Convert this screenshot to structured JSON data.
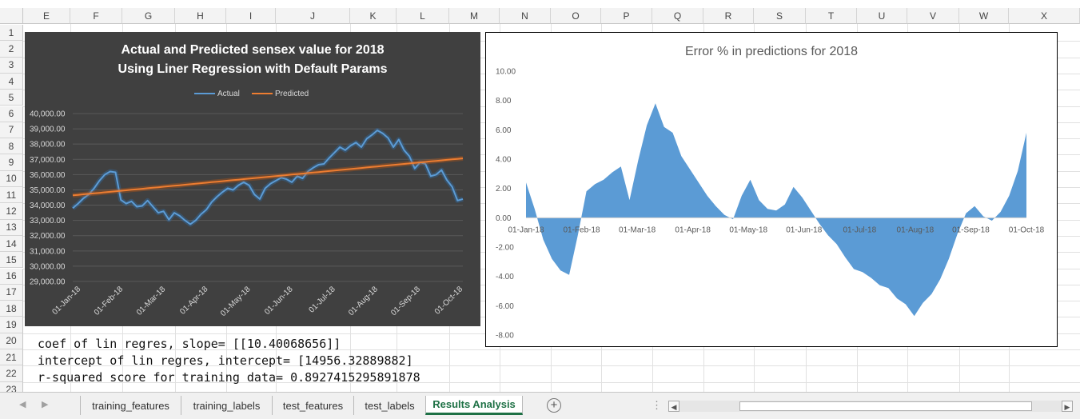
{
  "spreadsheet": {
    "columns": [
      "E",
      "F",
      "G",
      "H",
      "I",
      "J",
      "K",
      "L",
      "M",
      "N",
      "O",
      "P",
      "Q",
      "R",
      "S",
      "T",
      "U",
      "V",
      "W",
      "X"
    ],
    "rows": [
      "1",
      "2",
      "3",
      "4",
      "5",
      "6",
      "7",
      "8",
      "9",
      "10",
      "11",
      "12",
      "13",
      "14",
      "15",
      "16",
      "17",
      "18",
      "19",
      "20",
      "21",
      "22",
      "23"
    ],
    "cell_text": [
      "coef of lin regres, slope= [[10.40068656]]",
      "intercept of lin regres, intercept= [14956.32889882]",
      "r-squared score for training data= 0.8927415295891878"
    ]
  },
  "chart1": {
    "title_line1": "Actual and Predicted sensex value for 2018",
    "title_line2": "Using Liner Regression with Default Params",
    "legend": [
      {
        "label": "Actual",
        "color": "#5b9bd5"
      },
      {
        "label": "Predicted",
        "color": "#ed7d31"
      }
    ],
    "background": "#404040"
  },
  "chart2": {
    "title": "Error % in predictions for 2018",
    "fill_color": "#5b9bd5"
  },
  "chart_data": [
    {
      "type": "line",
      "title": "Actual and Predicted sensex value for 2018 Using Liner Regression with Default Params",
      "x_tick_labels": [
        "01-Jan-18",
        "01-Feb-18",
        "01-Mar-18",
        "01-Apr-18",
        "01-May-18",
        "01-Jun-18",
        "01-Jul-18",
        "01-Aug-18",
        "01-Sep-18",
        "01-Oct-18"
      ],
      "y_tick_labels": [
        "40,000.00",
        "39,000.00",
        "38,000.00",
        "37,000.00",
        "36,000.00",
        "35,000.00",
        "34,000.00",
        "33,000.00",
        "32,000.00",
        "31,000.00",
        "30,000.00",
        "29,000.00"
      ],
      "ylim": [
        29000,
        40000
      ],
      "x": [
        0,
        4,
        8,
        12,
        16,
        20,
        24,
        28,
        32,
        36,
        40,
        44,
        48,
        52,
        56,
        60,
        64,
        68,
        72,
        76,
        80,
        84,
        88,
        92,
        96,
        100,
        104,
        108,
        112,
        116,
        120,
        124,
        128,
        132,
        136,
        140,
        144,
        148,
        152,
        156,
        160,
        164,
        168,
        172,
        176,
        180,
        184,
        188,
        192,
        196,
        200,
        204,
        208,
        212,
        216,
        220,
        224,
        228,
        232,
        236,
        240,
        244,
        248,
        252,
        256,
        260,
        264,
        268,
        272,
        276,
        280,
        284,
        288,
        292
      ],
      "series": [
        {
          "name": "Actual",
          "values": [
            33800,
            34100,
            34450,
            34700,
            35100,
            35600,
            36000,
            36200,
            36150,
            34350,
            34100,
            34250,
            33900,
            33950,
            34300,
            33900,
            33500,
            33600,
            33050,
            33500,
            33300,
            33000,
            32750,
            33000,
            33400,
            33700,
            34200,
            34550,
            34850,
            35100,
            35000,
            35300,
            35500,
            35300,
            34700,
            34400,
            35100,
            35400,
            35600,
            35800,
            35700,
            35500,
            35900,
            35750,
            36200,
            36450,
            36650,
            36700,
            37100,
            37450,
            37800,
            37600,
            37900,
            38100,
            37800,
            38350,
            38600,
            38900,
            38700,
            38400,
            37800,
            38300,
            37600,
            37200,
            36400,
            36800,
            36700,
            35900,
            36000,
            36300,
            35650,
            35200,
            34300,
            34400
          ]
        },
        {
          "name": "Predicted",
          "values": [
            34640,
            34673,
            34707,
            34740,
            34773,
            34806,
            34839,
            34873,
            34906,
            34939,
            34972,
            35006,
            35039,
            35072,
            35105,
            35138,
            35172,
            35205,
            35238,
            35271,
            35304,
            35338,
            35371,
            35404,
            35437,
            35471,
            35504,
            35537,
            35570,
            35603,
            35637,
            35670,
            35703,
            35736,
            35769,
            35803,
            35836,
            35869,
            35902,
            35936,
            35969,
            36002,
            36035,
            36068,
            36102,
            36135,
            36168,
            36201,
            36234,
            36268,
            36301,
            36334,
            36367,
            36401,
            36434,
            36467,
            36500,
            36533,
            36567,
            36600,
            36633,
            36666,
            36699,
            36733,
            36766,
            36799,
            36832,
            36865,
            36899,
            36932,
            36965,
            36998,
            37031,
            37065
          ]
        }
      ]
    },
    {
      "type": "area",
      "title": "Error % in predictions for 2018",
      "x_tick_labels": [
        "01-Jan-18",
        "01-Feb-18",
        "01-Mar-18",
        "01-Apr-18",
        "01-May-18",
        "01-Jun-18",
        "01-Jul-18",
        "01-Aug-18",
        "01-Sep-18",
        "01-Oct-18"
      ],
      "y_tick_labels": [
        "10.00",
        "8.00",
        "6.00",
        "4.00",
        "2.00",
        "0.00",
        "-2.00",
        "-4.00",
        "-6.00",
        "-8.00"
      ],
      "ylim": [
        -8,
        10
      ],
      "x": [
        0,
        4,
        8,
        12,
        16,
        20,
        24,
        28,
        32,
        36,
        40,
        44,
        48,
        52,
        56,
        60,
        64,
        68,
        72,
        76,
        80,
        84,
        88,
        92,
        96,
        100,
        104,
        108,
        112,
        116,
        120,
        124,
        128,
        132,
        136,
        140,
        144,
        148,
        152,
        156,
        160,
        164,
        168,
        172,
        176,
        180,
        184,
        188,
        192,
        196,
        200,
        204,
        208,
        212,
        216,
        220,
        224,
        228,
        232,
        236,
        240,
        244,
        248,
        252,
        256,
        260,
        264,
        268,
        272,
        276,
        280,
        284,
        288,
        292
      ],
      "series": [
        {
          "name": "Error %",
          "values": [
            2.4,
            0.6,
            -1.5,
            -2.8,
            -3.6,
            -3.9,
            -1.2,
            1.8,
            2.3,
            2.6,
            3.1,
            3.5,
            1.2,
            3.9,
            6.3,
            7.8,
            6.2,
            5.8,
            4.2,
            3.3,
            2.4,
            1.5,
            0.8,
            0.2,
            -0.1,
            1.5,
            2.6,
            1.2,
            0.6,
            0.5,
            0.9,
            2.1,
            1.4,
            0.5,
            -0.4,
            -1.2,
            -1.8,
            -2.7,
            -3.5,
            -3.7,
            -4.1,
            -4.6,
            -4.8,
            -5.5,
            -5.9,
            -6.7,
            -5.8,
            -5.2,
            -4.2,
            -2.8,
            -1.1,
            0.3,
            0.8,
            0.1,
            -0.2,
            0.4,
            1.5,
            3.2,
            5.8,
            0.6,
            0.2,
            0.1,
            0.0,
            0.0,
            0.0,
            0.0,
            0.0,
            0.0,
            0.0,
            0.0,
            0.0,
            0.0,
            0.0,
            0.0
          ]
        }
      ]
    }
  ],
  "tabs": [
    {
      "label": "training_features",
      "active": false
    },
    {
      "label": "training_labels",
      "active": false
    },
    {
      "label": "test_features",
      "active": false
    },
    {
      "label": "test_labels",
      "active": false
    },
    {
      "label": "Results Analysis",
      "active": true
    }
  ],
  "tabbar": {
    "prev_icon": "◀",
    "next_icon": "▶",
    "add_sheet_icon": "+",
    "scroll_left_icon": "◀",
    "scroll_right_icon": "▶",
    "dots": "⋮"
  }
}
